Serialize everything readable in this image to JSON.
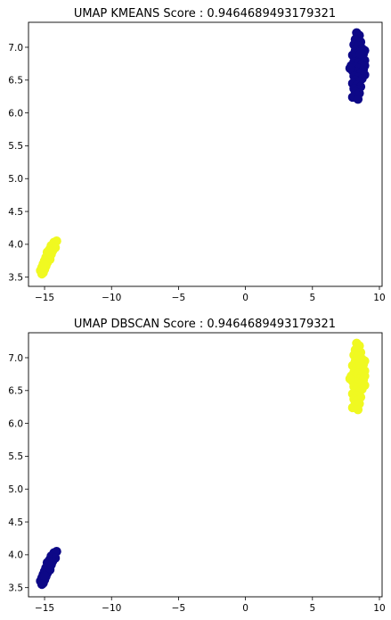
{
  "chart_data": [
    {
      "type": "scatter",
      "title": "UMAP KMEANS Score : 0.9464689493179321",
      "xlabel": "",
      "ylabel": "",
      "xlim": [
        -16.2,
        10.2
      ],
      "ylim": [
        3.36,
        7.38
      ],
      "xticks": [
        -15,
        -10,
        -5,
        0,
        5,
        10
      ],
      "xtick_labels": [
        "−15",
        "−10",
        "−5",
        "0",
        "5",
        "10"
      ],
      "yticks": [
        3.5,
        4.0,
        4.5,
        5.0,
        5.5,
        6.0,
        6.5,
        7.0
      ],
      "ytick_labels": [
        "3.5",
        "4.0",
        "4.5",
        "5.0",
        "5.5",
        "6.0",
        "6.5",
        "7.0"
      ],
      "grid": false,
      "series": [
        {
          "color": "#0d0887",
          "points": [
            [
              8.3,
              7.22
            ],
            [
              8.5,
              7.18
            ],
            [
              8.2,
              7.12
            ],
            [
              8.6,
              7.08
            ],
            [
              8.1,
              7.04
            ],
            [
              8.4,
              7.02
            ],
            [
              8.7,
              6.98
            ],
            [
              8.2,
              6.95
            ],
            [
              8.5,
              6.92
            ],
            [
              8.8,
              6.9
            ],
            [
              8.0,
              6.88
            ],
            [
              8.3,
              6.85
            ],
            [
              8.6,
              6.82
            ],
            [
              8.9,
              6.8
            ],
            [
              8.1,
              6.78
            ],
            [
              8.4,
              6.76
            ],
            [
              8.7,
              6.74
            ],
            [
              7.9,
              6.72
            ],
            [
              8.2,
              6.7
            ],
            [
              8.5,
              6.68
            ],
            [
              8.8,
              6.66
            ],
            [
              8.0,
              6.64
            ],
            [
              8.3,
              6.62
            ],
            [
              8.6,
              6.6
            ],
            [
              8.9,
              6.58
            ],
            [
              8.1,
              6.56
            ],
            [
              8.4,
              6.54
            ],
            [
              8.7,
              6.52
            ],
            [
              8.2,
              6.5
            ],
            [
              8.5,
              6.48
            ],
            [
              8.0,
              6.45
            ],
            [
              8.3,
              6.42
            ],
            [
              8.6,
              6.4
            ],
            [
              8.1,
              6.37
            ],
            [
              8.4,
              6.35
            ],
            [
              8.2,
              6.32
            ],
            [
              8.5,
              6.3
            ],
            [
              8.3,
              6.27
            ],
            [
              8.0,
              6.24
            ],
            [
              8.4,
              6.21
            ],
            [
              8.9,
              6.95
            ],
            [
              8.9,
              6.72
            ],
            [
              7.8,
              6.68
            ],
            [
              8.6,
              6.9
            ]
          ]
        },
        {
          "color": "#f0f921",
          "points": [
            [
              -14.1,
              4.05
            ],
            [
              -14.3,
              4.03
            ],
            [
              -14.5,
              3.98
            ],
            [
              -14.2,
              3.95
            ],
            [
              -14.6,
              3.93
            ],
            [
              -14.4,
              3.9
            ],
            [
              -14.8,
              3.88
            ],
            [
              -14.5,
              3.85
            ],
            [
              -14.7,
              3.82
            ],
            [
              -14.9,
              3.8
            ],
            [
              -14.6,
              3.77
            ],
            [
              -15.0,
              3.75
            ],
            [
              -14.8,
              3.72
            ],
            [
              -15.1,
              3.7
            ],
            [
              -14.9,
              3.67
            ],
            [
              -15.2,
              3.65
            ],
            [
              -15.0,
              3.62
            ],
            [
              -15.3,
              3.6
            ],
            [
              -15.1,
              3.57
            ],
            [
              -15.2,
              3.55
            ],
            [
              -14.7,
              3.9
            ],
            [
              -15.0,
              3.68
            ]
          ]
        }
      ]
    },
    {
      "type": "scatter",
      "title": "UMAP DBSCAN Score : 0.9464689493179321",
      "xlabel": "",
      "ylabel": "",
      "xlim": [
        -16.2,
        10.2
      ],
      "ylim": [
        3.36,
        7.38
      ],
      "xticks": [
        -15,
        -10,
        -5,
        0,
        5,
        10
      ],
      "xtick_labels": [
        "−15",
        "−10",
        "−5",
        "0",
        "5",
        "10"
      ],
      "yticks": [
        3.5,
        4.0,
        4.5,
        5.0,
        5.5,
        6.0,
        6.5,
        7.0
      ],
      "ytick_labels": [
        "3.5",
        "4.0",
        "4.5",
        "5.0",
        "5.5",
        "6.0",
        "6.5",
        "7.0"
      ],
      "grid": false,
      "series": [
        {
          "color": "#f0f921",
          "points": [
            [
              8.3,
              7.22
            ],
            [
              8.5,
              7.18
            ],
            [
              8.2,
              7.12
            ],
            [
              8.6,
              7.08
            ],
            [
              8.1,
              7.04
            ],
            [
              8.4,
              7.02
            ],
            [
              8.7,
              6.98
            ],
            [
              8.2,
              6.95
            ],
            [
              8.5,
              6.92
            ],
            [
              8.8,
              6.9
            ],
            [
              8.0,
              6.88
            ],
            [
              8.3,
              6.85
            ],
            [
              8.6,
              6.82
            ],
            [
              8.9,
              6.8
            ],
            [
              8.1,
              6.78
            ],
            [
              8.4,
              6.76
            ],
            [
              8.7,
              6.74
            ],
            [
              7.9,
              6.72
            ],
            [
              8.2,
              6.7
            ],
            [
              8.5,
              6.68
            ],
            [
              8.8,
              6.66
            ],
            [
              8.0,
              6.64
            ],
            [
              8.3,
              6.62
            ],
            [
              8.6,
              6.6
            ],
            [
              8.9,
              6.58
            ],
            [
              8.1,
              6.56
            ],
            [
              8.4,
              6.54
            ],
            [
              8.7,
              6.52
            ],
            [
              8.2,
              6.5
            ],
            [
              8.5,
              6.48
            ],
            [
              8.0,
              6.45
            ],
            [
              8.3,
              6.42
            ],
            [
              8.6,
              6.4
            ],
            [
              8.1,
              6.37
            ],
            [
              8.4,
              6.35
            ],
            [
              8.2,
              6.32
            ],
            [
              8.5,
              6.3
            ],
            [
              8.3,
              6.27
            ],
            [
              8.0,
              6.24
            ],
            [
              8.4,
              6.21
            ],
            [
              8.9,
              6.95
            ],
            [
              8.9,
              6.72
            ],
            [
              7.8,
              6.68
            ],
            [
              8.6,
              6.9
            ]
          ]
        },
        {
          "color": "#0d0887",
          "points": [
            [
              -14.1,
              4.05
            ],
            [
              -14.3,
              4.03
            ],
            [
              -14.5,
              3.98
            ],
            [
              -14.2,
              3.95
            ],
            [
              -14.6,
              3.93
            ],
            [
              -14.4,
              3.9
            ],
            [
              -14.8,
              3.88
            ],
            [
              -14.5,
              3.85
            ],
            [
              -14.7,
              3.82
            ],
            [
              -14.9,
              3.8
            ],
            [
              -14.6,
              3.77
            ],
            [
              -15.0,
              3.75
            ],
            [
              -14.8,
              3.72
            ],
            [
              -15.1,
              3.7
            ],
            [
              -14.9,
              3.67
            ],
            [
              -15.2,
              3.65
            ],
            [
              -15.0,
              3.62
            ],
            [
              -15.3,
              3.6
            ],
            [
              -15.1,
              3.57
            ],
            [
              -15.2,
              3.55
            ],
            [
              -14.7,
              3.9
            ],
            [
              -15.0,
              3.68
            ]
          ]
        }
      ]
    }
  ]
}
